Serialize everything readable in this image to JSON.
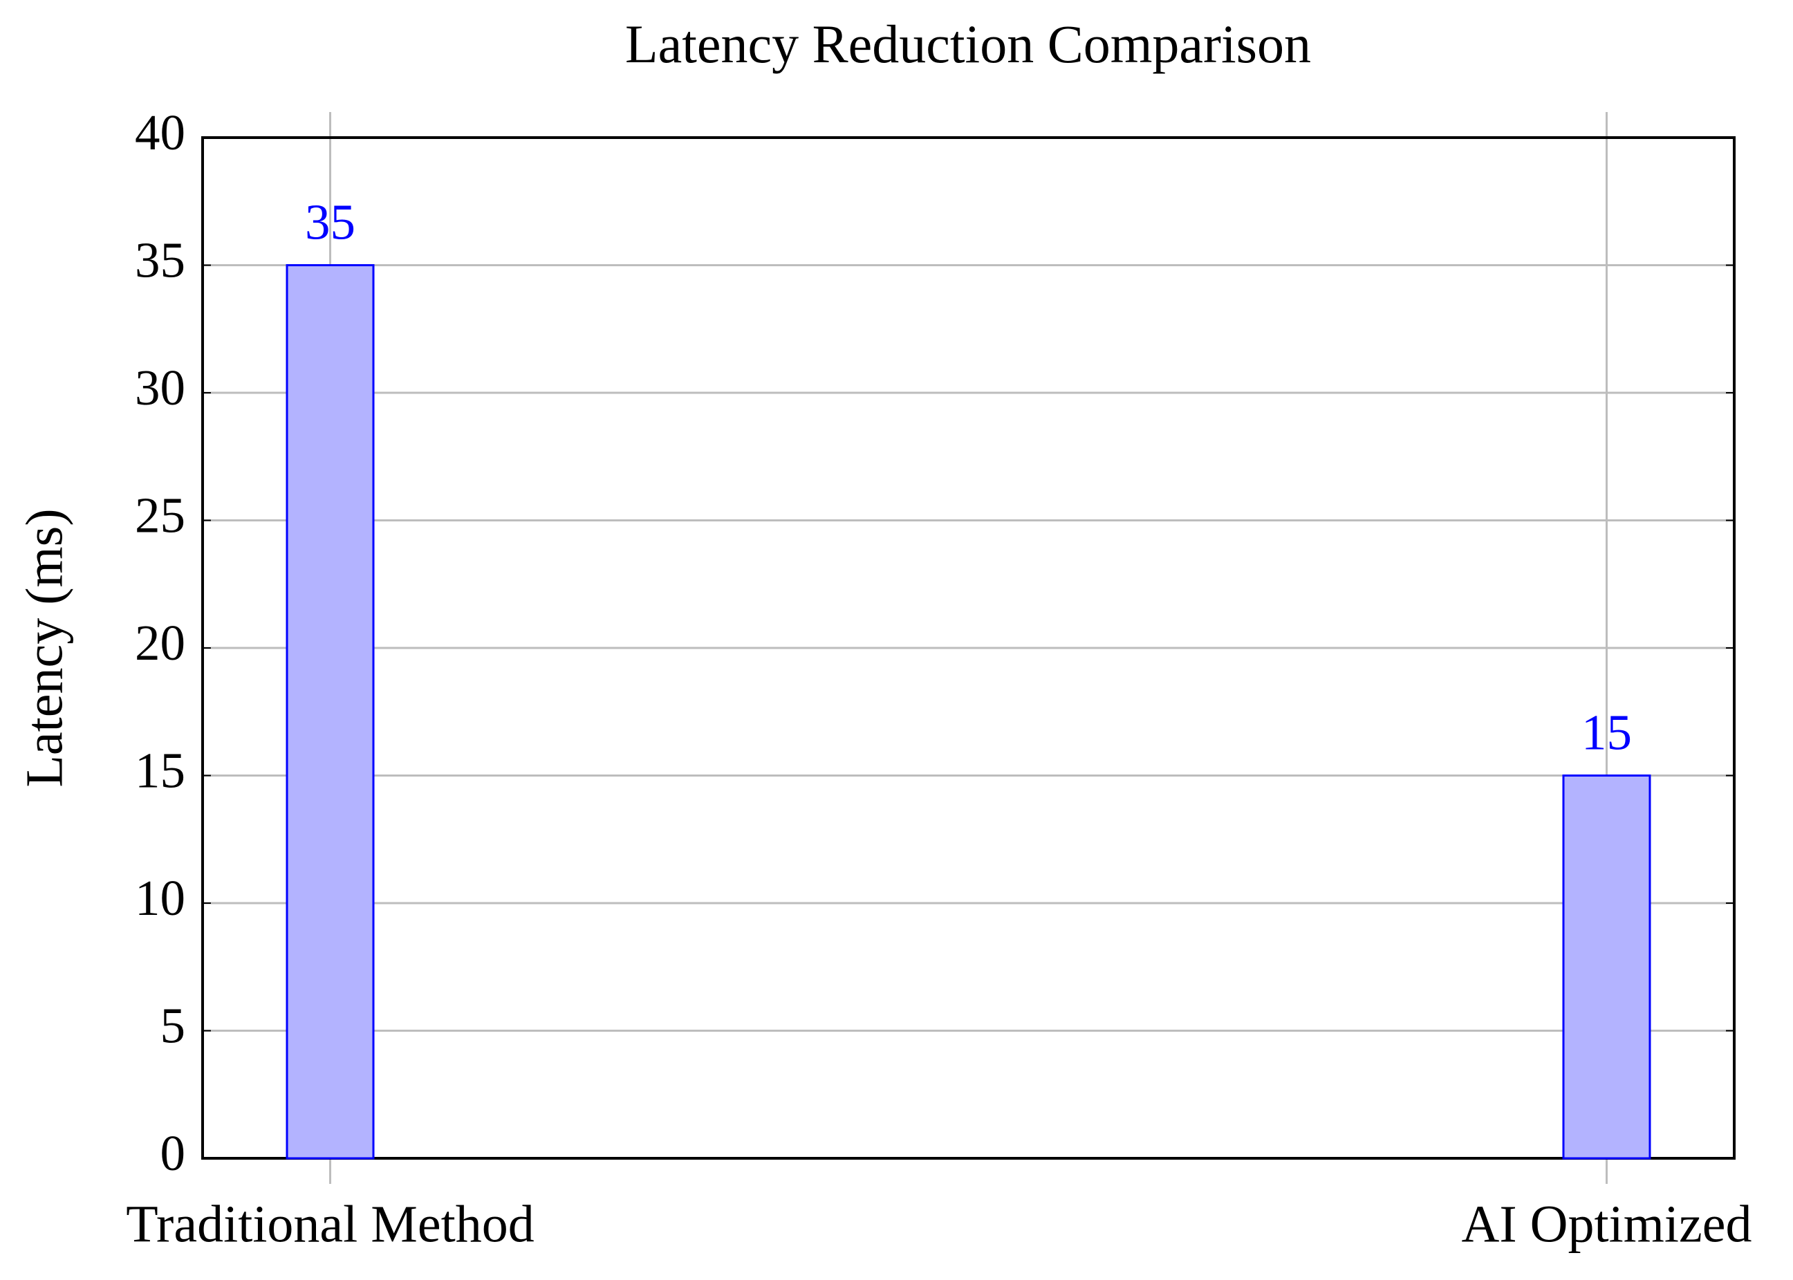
{
  "chart_data": {
    "type": "bar",
    "title": "Latency Reduction Comparison",
    "ylabel": "Latency (ms)",
    "categories": [
      "Traditional Method",
      "AI Optimized"
    ],
    "values": [
      35,
      15
    ],
    "color": "#b3b3ff",
    "edge_color": "#0000ff",
    "value_label_color": "#0000ff",
    "ylim": [
      0,
      40
    ],
    "yticks": [
      0,
      5,
      10,
      15,
      20,
      25,
      30,
      35,
      40
    ],
    "grid": true
  }
}
